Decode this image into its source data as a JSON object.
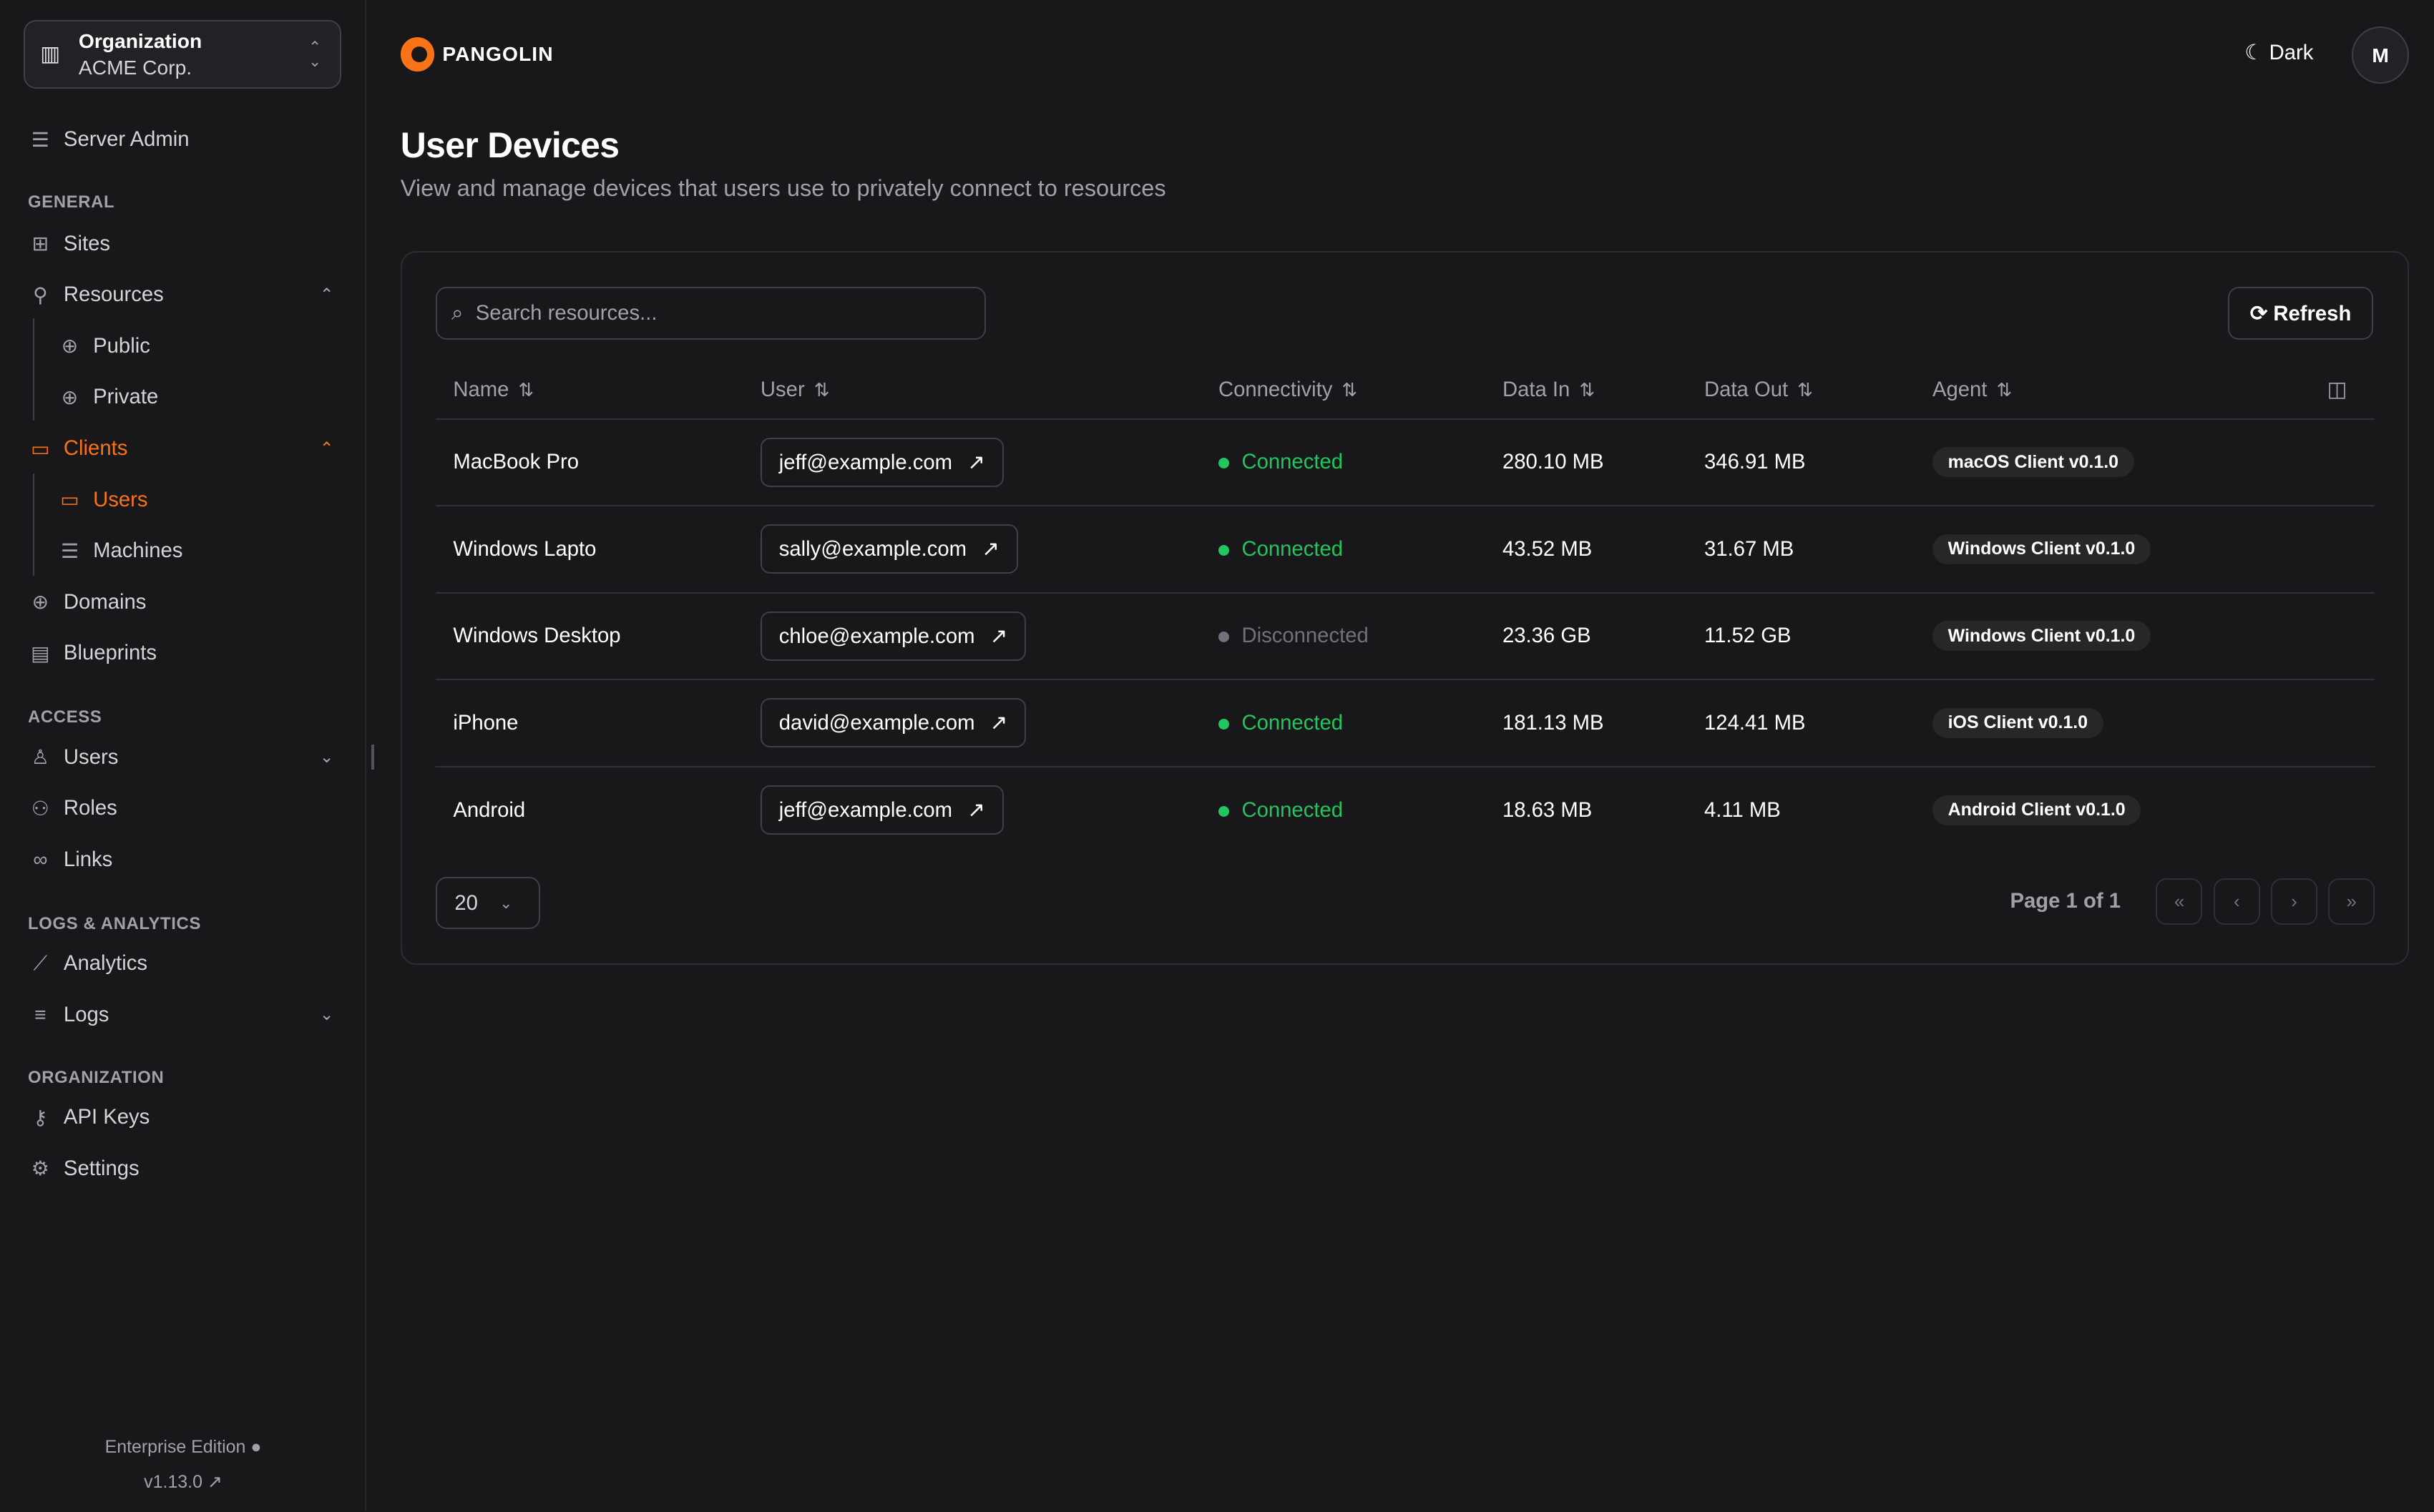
{
  "org": {
    "label": "Organization",
    "name": "ACME Corp."
  },
  "sidebar": {
    "server_admin": "Server Admin",
    "sections": [
      "GENERAL",
      "ACCESS",
      "LOGS & ANALYTICS",
      "ORGANIZATION"
    ],
    "items": [
      {
        "label": "Sites",
        "icon": "sites-icon"
      },
      {
        "label": "Resources",
        "icon": "resources-icon"
      },
      {
        "label": "Public",
        "icon": "globe-icon"
      },
      {
        "label": "Private",
        "icon": "globe-lock-icon"
      },
      {
        "label": "Clients",
        "icon": "monitor-icon"
      },
      {
        "label": "Users",
        "icon": "laptop-icon"
      },
      {
        "label": "Machines",
        "icon": "server-icon"
      },
      {
        "label": "Domains",
        "icon": "globe-icon"
      },
      {
        "label": "Blueprints",
        "icon": "document-icon"
      },
      {
        "label": "Users",
        "icon": "user-icon"
      },
      {
        "label": "Roles",
        "icon": "users-icon"
      },
      {
        "label": "Links",
        "icon": "link-icon"
      },
      {
        "label": "Analytics",
        "icon": "chart-icon"
      },
      {
        "label": "Logs",
        "icon": "list-icon"
      },
      {
        "label": "API Keys",
        "icon": "key-icon"
      },
      {
        "label": "Settings",
        "icon": "gear-icon"
      }
    ],
    "edition": "Enterprise Edition",
    "version": "v1.13.0"
  },
  "header": {
    "brand": "PANGOLIN",
    "theme": "Dark",
    "avatar": "M"
  },
  "page": {
    "title": "User Devices",
    "subtitle": "View and manage devices that users use to privately connect to resources"
  },
  "toolbar": {
    "search_placeholder": "Search resources...",
    "refresh": "Refresh"
  },
  "table": {
    "columns": [
      "Name",
      "User",
      "Connectivity",
      "Data In",
      "Data Out",
      "Agent"
    ],
    "rows": [
      {
        "name": "MacBook Pro",
        "user": "jeff@example.com",
        "status": "Connected",
        "in": "280.10 MB",
        "out": "346.91 MB",
        "agent": "macOS Client v0.1.0"
      },
      {
        "name": "Windows Lapto",
        "user": "sally@example.com",
        "status": "Connected",
        "in": "43.52 MB",
        "out": "31.67 MB",
        "agent": "Windows Client v0.1.0"
      },
      {
        "name": "Windows Desktop",
        "user": "chloe@example.com",
        "status": "Disconnected",
        "in": "23.36 GB",
        "out": "11.52 GB",
        "agent": "Windows Client v0.1.0"
      },
      {
        "name": "iPhone",
        "user": "david@example.com",
        "status": "Connected",
        "in": "181.13 MB",
        "out": "124.41 MB",
        "agent": "iOS Client v0.1.0"
      },
      {
        "name": "Android",
        "user": "jeff@example.com",
        "status": "Connected",
        "in": "18.63 MB",
        "out": "4.11 MB",
        "agent": "Android Client v0.1.0"
      }
    ]
  },
  "pagination": {
    "page_size": "20",
    "info": "Page 1 of 1"
  },
  "colors": {
    "accent": "#f97316",
    "connected": "#22c55e",
    "disconnected": "#71717a"
  }
}
